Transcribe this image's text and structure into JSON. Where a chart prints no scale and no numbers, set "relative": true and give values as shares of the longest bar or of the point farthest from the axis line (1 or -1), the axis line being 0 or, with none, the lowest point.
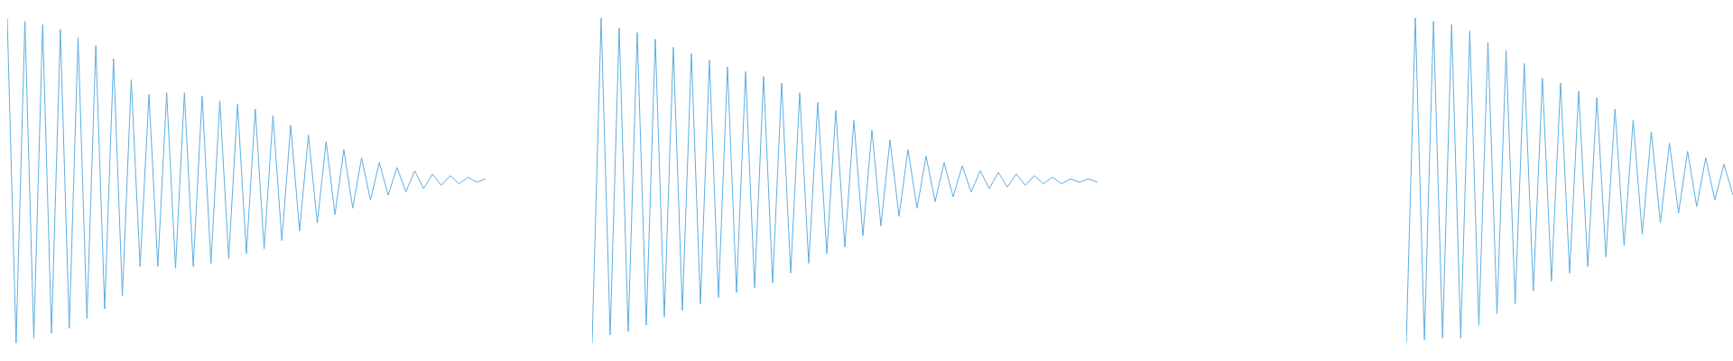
{
  "chart_data": [
    {
      "type": "line",
      "relative": true,
      "color": "#5dade2",
      "marker": "none",
      "categories": [
        null,
        null,
        null,
        null,
        null,
        null,
        null,
        null,
        null,
        null,
        null,
        null,
        null,
        null,
        null,
        null,
        null,
        null,
        null,
        null,
        null,
        null,
        null,
        null,
        null,
        null,
        null,
        null,
        null,
        null,
        null,
        null,
        null,
        null,
        null,
        null,
        null,
        null,
        null,
        null,
        null,
        null,
        null,
        null,
        null,
        null,
        null,
        null,
        null,
        null,
        null,
        null,
        null,
        null,
        null
      ],
      "values": [
        1,
        0,
        0.99,
        0.015,
        0.98,
        0.03,
        0.965,
        0.045,
        0.94,
        0.075,
        0.915,
        0.105,
        0.875,
        0.145,
        0.81,
        0.235,
        0.765,
        0.235,
        0.77,
        0.23,
        0.77,
        0.235,
        0.76,
        0.245,
        0.745,
        0.26,
        0.735,
        0.275,
        0.72,
        0.29,
        0.7,
        0.315,
        0.67,
        0.345,
        0.64,
        0.37,
        0.62,
        0.395,
        0.595,
        0.415,
        0.57,
        0.44,
        0.555,
        0.455,
        0.54,
        0.465,
        0.53,
        0.475,
        0.52,
        0.485,
        0.515,
        0.49,
        0.51,
        0.495,
        0.505
      ]
    },
    {
      "type": "line",
      "relative": true,
      "color": "#5dade2",
      "marker": "none",
      "categories": [
        null,
        null,
        null,
        null,
        null,
        null,
        null,
        null,
        null,
        null,
        null,
        null,
        null,
        null,
        null,
        null,
        null,
        null,
        null,
        null,
        null,
        null,
        null,
        null,
        null,
        null,
        null,
        null,
        null,
        null,
        null,
        null,
        null,
        null,
        null,
        null,
        null,
        null,
        null,
        null,
        null,
        null,
        null,
        null,
        null,
        null,
        null,
        null,
        null,
        null,
        null,
        null,
        null,
        null,
        null,
        null,
        null
      ],
      "values": [
        0,
        1,
        0.025,
        0.97,
        0.035,
        0.955,
        0.055,
        0.935,
        0.08,
        0.91,
        0.1,
        0.89,
        0.12,
        0.87,
        0.14,
        0.85,
        0.155,
        0.835,
        0.17,
        0.82,
        0.185,
        0.8,
        0.215,
        0.77,
        0.245,
        0.74,
        0.275,
        0.715,
        0.295,
        0.685,
        0.33,
        0.655,
        0.36,
        0.625,
        0.39,
        0.595,
        0.415,
        0.575,
        0.435,
        0.555,
        0.45,
        0.545,
        0.465,
        0.53,
        0.475,
        0.525,
        0.48,
        0.52,
        0.485,
        0.515,
        0.49,
        0.51,
        0.49,
        0.505,
        0.495,
        0.505,
        0.495
      ]
    },
    {
      "type": "line",
      "relative": true,
      "color": "#5dade2",
      "marker": "none",
      "categories": [
        null,
        null,
        null,
        null,
        null,
        null,
        null,
        null,
        null,
        null,
        null,
        null,
        null,
        null,
        null,
        null,
        null,
        null,
        null,
        null,
        null,
        null,
        null,
        null,
        null,
        null,
        null,
        null,
        null,
        null,
        null,
        null,
        null,
        null,
        null,
        null,
        null
      ],
      "values": [
        0,
        1,
        0.01,
        0.99,
        0.015,
        0.98,
        0.015,
        0.96,
        0.055,
        0.925,
        0.09,
        0.9,
        0.12,
        0.86,
        0.16,
        0.815,
        0.19,
        0.8,
        0.215,
        0.775,
        0.235,
        0.755,
        0.265,
        0.72,
        0.3,
        0.685,
        0.335,
        0.65,
        0.37,
        0.615,
        0.4,
        0.59,
        0.42,
        0.57,
        0.44,
        0.55,
        0.455
      ]
    }
  ]
}
